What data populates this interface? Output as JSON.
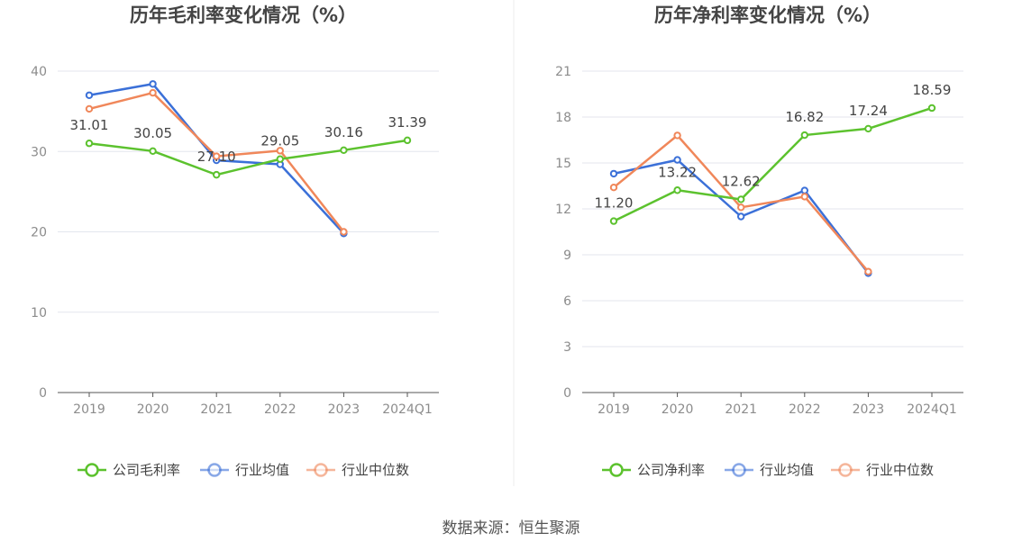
{
  "source_text": "数据来源：恒生聚源",
  "legend_labels": {
    "gross": [
      "公司毛利率",
      "行业均值",
      "行业中位数"
    ],
    "net": [
      "公司净利率",
      "行业均值",
      "行业中位数"
    ]
  },
  "colors": {
    "company": "#5cc22e",
    "mean": "#3b70d8",
    "median": "#f0875a",
    "grid": "#e3e6ee",
    "axis": "#555555",
    "divider": "#eeeeee"
  },
  "chart_data": [
    {
      "type": "line",
      "title": "历年毛利率变化情况（%）",
      "categories": [
        "2019",
        "2020",
        "2021",
        "2022",
        "2023",
        "2024Q1"
      ],
      "yticks": [
        "0",
        "10",
        "20",
        "30",
        "40"
      ],
      "ylim": [
        0,
        40
      ],
      "grid": true,
      "legend_position": "bottom",
      "series": [
        {
          "name": "公司毛利率",
          "values": [
            31.01,
            30.05,
            27.1,
            29.05,
            30.16,
            31.39
          ],
          "labels": [
            "31.01",
            "30.05",
            "27.10",
            "29.05",
            "30.16",
            "31.39"
          ]
        },
        {
          "name": "行业均值",
          "values": [
            37.0,
            38.4,
            28.9,
            28.4,
            19.8,
            null
          ]
        },
        {
          "name": "行业中位数",
          "values": [
            35.3,
            37.3,
            29.4,
            30.1,
            20.0,
            null
          ]
        }
      ]
    },
    {
      "type": "line",
      "title": "历年净利率变化情况（%）",
      "categories": [
        "2019",
        "2020",
        "2021",
        "2022",
        "2023",
        "2024Q1"
      ],
      "yticks": [
        "0",
        "3",
        "6",
        "9",
        "12",
        "15",
        "18",
        "21"
      ],
      "ylim": [
        0,
        21
      ],
      "grid": true,
      "legend_position": "bottom",
      "series": [
        {
          "name": "公司净利率",
          "values": [
            11.2,
            13.22,
            12.62,
            16.82,
            17.24,
            18.59
          ],
          "labels": [
            "11.20",
            "13.22",
            "12.62",
            "16.82",
            "17.24",
            "18.59"
          ]
        },
        {
          "name": "行业均值",
          "values": [
            14.3,
            15.2,
            11.5,
            13.2,
            7.8,
            null
          ]
        },
        {
          "name": "行业中位数",
          "values": [
            13.4,
            16.8,
            12.1,
            12.8,
            7.9,
            null
          ]
        }
      ]
    }
  ]
}
